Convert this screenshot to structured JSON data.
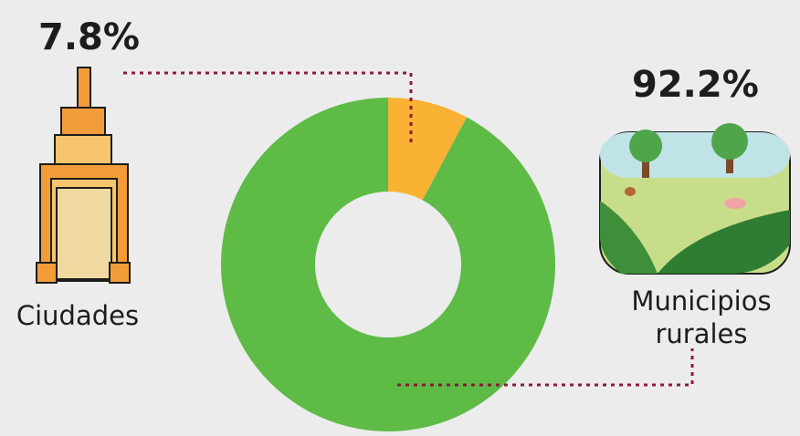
{
  "chart_data": {
    "type": "pie",
    "categories": [
      "Ciudades",
      "Municipios rurales"
    ],
    "values": [
      7.8,
      92.2
    ],
    "value_labels": [
      "7.8%",
      "92.2%"
    ],
    "colors": [
      "#f9b233",
      "#5dbb46"
    ],
    "hole": true
  }
}
